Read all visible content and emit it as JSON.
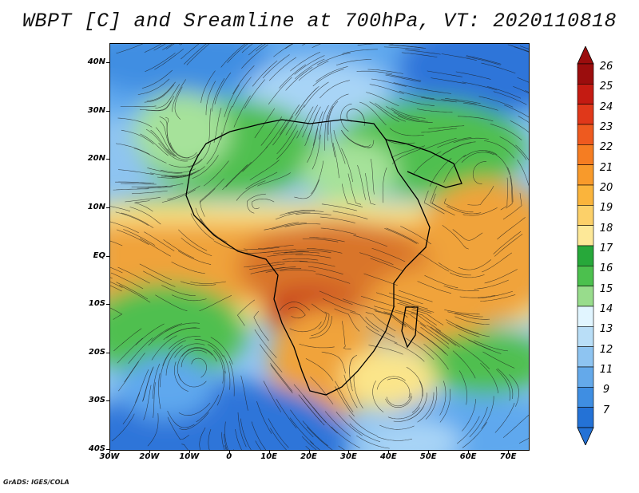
{
  "title": "WBPT [C] and Sreamline at 700hPa, VT: 2020110818",
  "credit": "GrADS: IGES/COLA",
  "map": {
    "lat_labels": [
      "40N",
      "30N",
      "20N",
      "10N",
      "EQ",
      "10S",
      "20S",
      "30S",
      "40S"
    ],
    "lon_labels": [
      "30W",
      "20W",
      "10W",
      "0",
      "10E",
      "20E",
      "30E",
      "40E",
      "50E",
      "60E",
      "70E"
    ],
    "lat_range": [
      -40,
      44
    ],
    "lon_range": [
      -30,
      75
    ],
    "field_colors": {
      "cold": "#2f74d9",
      "cool": "#5ea8ee",
      "cool_light": "#a8d4f6",
      "mid_green": "#4fbf4f",
      "light_green": "#a6e29a",
      "yellow": "#fbe58a",
      "orange": "#f0a33a",
      "dark_orange": "#d9742a",
      "red": "#c9431f"
    }
  },
  "colorbar": {
    "labels": [
      "26",
      "25",
      "24",
      "23",
      "22",
      "21",
      "20",
      "19",
      "18",
      "17",
      "16",
      "15",
      "14",
      "13",
      "12",
      "11",
      "9",
      "7"
    ],
    "colors": [
      "#9b0d0d",
      "#c41b12",
      "#e0381a",
      "#ee5a1f",
      "#f57d22",
      "#f89a2b",
      "#fab43c",
      "#fcd069",
      "#fde898",
      "#27a83a",
      "#4cc04e",
      "#98dc8c",
      "#e1f5ff",
      "#b9def7",
      "#8ec4f1",
      "#64a9ea",
      "#3f8ee2",
      "#2472d6"
    ]
  },
  "chart_data": {
    "type": "heatmap",
    "title": "WBPT [C] and Sreamline at 700hPa, VT: 2020110818",
    "x_ticks": [
      "30W",
      "20W",
      "10W",
      "0",
      "10E",
      "20E",
      "30E",
      "40E",
      "50E",
      "60E",
      "70E"
    ],
    "y_ticks": [
      "40N",
      "30N",
      "20N",
      "10N",
      "EQ",
      "10S",
      "20S",
      "30S",
      "40S"
    ],
    "x_range_deg": [
      -30,
      75
    ],
    "y_range_deg": [
      -40,
      44
    ],
    "colorbar_levels": [
      7,
      9,
      11,
      12,
      13,
      14,
      15,
      16,
      17,
      18,
      19,
      20,
      21,
      22,
      23,
      24,
      25,
      26
    ]
  }
}
